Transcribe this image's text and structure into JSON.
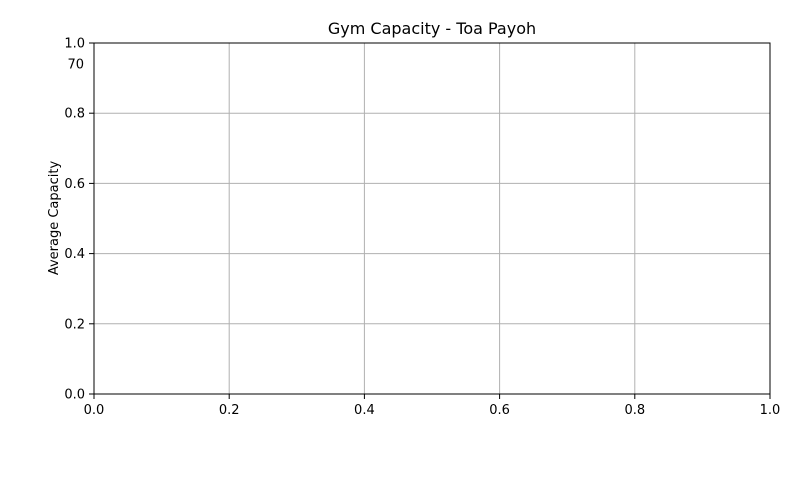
{
  "chart_data": {
    "type": "line",
    "title": "Gym Capacity - Toa Payoh",
    "xlabel": "",
    "ylabel": "Average Capacity",
    "xlim": [
      0.0,
      1.0
    ],
    "ylim": [
      0.0,
      1.0
    ],
    "x_ticks": [
      "0.0",
      "0.2",
      "0.4",
      "0.6",
      "0.8",
      "1.0"
    ],
    "y_ticks": [
      "0.0",
      "0.2",
      "0.4",
      "0.6",
      "0.8",
      "1.0"
    ],
    "grid": true,
    "series": [],
    "annotations": [
      {
        "text": "70",
        "x": 0.0,
        "y": 0.94
      }
    ],
    "colors": {
      "grid": "#b0b0b0",
      "axes": "#000000"
    }
  }
}
